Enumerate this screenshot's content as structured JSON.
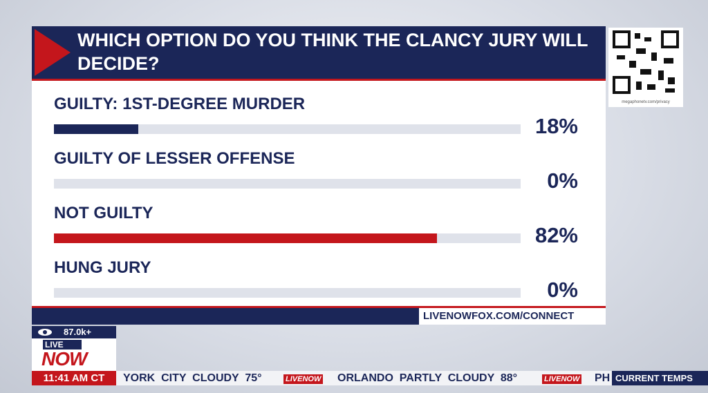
{
  "chart_data": {
    "type": "bar",
    "orientation": "horizontal",
    "title": "WHICH OPTION DO YOU THINK THE CLANCY JURY WILL DECIDE?",
    "categories": [
      "GUILTY: 1ST-DEGREE MURDER",
      "GUILTY OF LESSER OFFENSE",
      "NOT GUILTY",
      "HUNG JURY"
    ],
    "values": [
      18,
      0,
      82,
      0
    ],
    "value_labels": [
      "18%",
      "0%",
      "82%",
      "0%"
    ],
    "colors": [
      "#1b2658",
      "#1b2658",
      "#c4161c",
      "#1b2658"
    ],
    "xlim": [
      0,
      100
    ]
  },
  "poll_url": "LIVENOWFOX.COM/CONNECT",
  "qr_caption": "megaphonetv.com/privacy",
  "viewers": "87.0k+",
  "logo": {
    "live": "LIVE",
    "now": "NOW"
  },
  "time": "11:41 AM CT",
  "ticker": {
    "items": [
      "YORK  CITY  CLOUDY  75°",
      "ORLANDO  PARTLY  CLOUDY  88°",
      "PH"
    ],
    "logo": "LIVENOW",
    "section": "CURRENT TEMPS"
  }
}
